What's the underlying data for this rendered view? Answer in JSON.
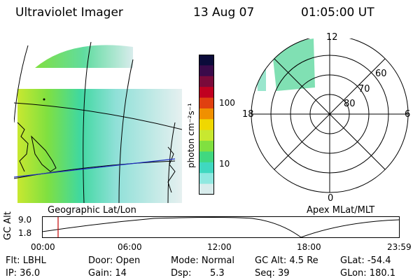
{
  "header": {
    "instrument": "Ultraviolet Imager",
    "date": "13 Aug 07",
    "time": "01:05:00 UT"
  },
  "colorbar": {
    "unit_label": "photon cm⁻²s⁻¹",
    "tick_100": "100",
    "tick_10": "10",
    "colors": [
      "#0b0b3a",
      "#3a0a4a",
      "#7a0a3a",
      "#c00020",
      "#e04010",
      "#f09000",
      "#f0d800",
      "#c8e830",
      "#80e040",
      "#40d880",
      "#40d8c0",
      "#90e8e0",
      "#d8ecec"
    ]
  },
  "left_map": {
    "caption": "Geographic Lat/Lon"
  },
  "polar_plot": {
    "caption": "Apex MLat/MLT",
    "mlt_top": "12",
    "mlt_left": "18",
    "mlt_right": "6",
    "mlt_bottom": "0",
    "lat_60": "60",
    "lat_70": "70",
    "lat_80": "80"
  },
  "altitude_plot": {
    "ylabel": "GC Alt",
    "ytick_high": "9.0",
    "ytick_low": "1.8",
    "xticks": [
      "00:00",
      "06:00",
      "12:00",
      "18:00",
      "23:59"
    ],
    "current_time_marker_color": "#c00000"
  },
  "footer": {
    "filter": "Flt: LBHL",
    "ip": "IP: 36.0",
    "door": "Door: Open",
    "gain": "Gain: 14",
    "mode": "Mode: Normal",
    "dsp_label": "Dsp:",
    "dsp_value": "5.3",
    "gc_alt": "GC Alt: 4.5 Re",
    "seq": "Seq: 39",
    "glat": "GLat: -54.4",
    "glon": "GLon: 180.1"
  }
}
